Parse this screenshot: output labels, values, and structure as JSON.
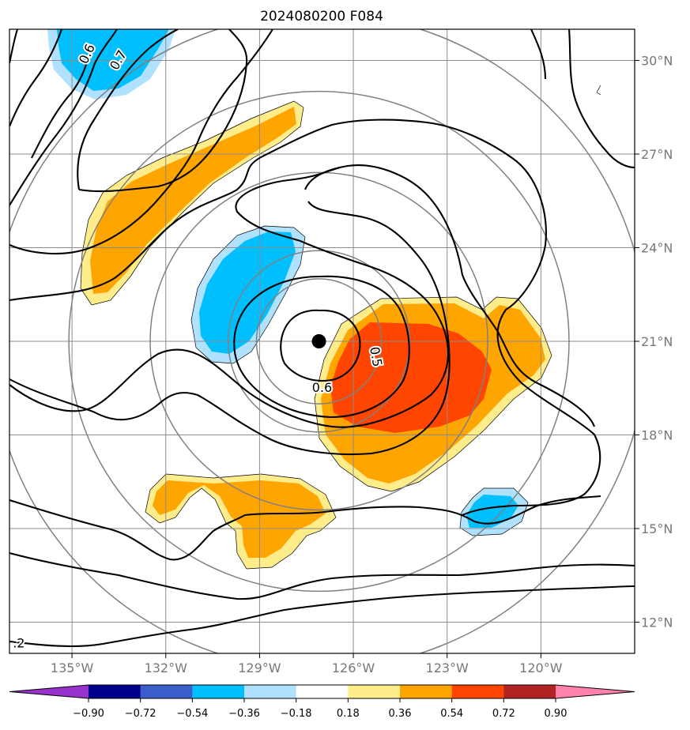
{
  "title": "2024080200 F084",
  "chart_data": {
    "type": "contour-map",
    "title": "2024080200 F084",
    "xlim": [
      -137,
      -117
    ],
    "ylim": [
      11,
      31
    ],
    "x_ticks": [
      {
        "lon": -135,
        "label": "135°W"
      },
      {
        "lon": -132,
        "label": "132°W"
      },
      {
        "lon": -129,
        "label": "129°W"
      },
      {
        "lon": -126,
        "label": "126°W"
      },
      {
        "lon": -123,
        "label": "123°W"
      },
      {
        "lon": -120,
        "label": "120°W"
      }
    ],
    "y_ticks": [
      {
        "lat": 30,
        "label": "30°N"
      },
      {
        "lat": 27,
        "label": "27°N"
      },
      {
        "lat": 24,
        "label": "24°N"
      },
      {
        "lat": 21,
        "label": "21°N"
      },
      {
        "lat": 18,
        "label": "18°N"
      },
      {
        "lat": 15,
        "label": "15°N"
      },
      {
        "lat": 12,
        "label": "12°N"
      }
    ],
    "grid": true,
    "center": {
      "lon": -127.1,
      "lat": 21.0
    },
    "range_rings_deg": [
      2.0,
      2.9,
      5.4,
      8.0,
      10.5
    ],
    "colorbar": {
      "ticks": [
        "−0.90",
        "−0.72",
        "−0.54",
        "−0.36",
        "−0.18",
        "0.18",
        "0.36",
        "0.54",
        "0.72",
        "0.90"
      ],
      "colors": [
        "#9932cc",
        "#00008b",
        "#3a5fcd",
        "#00bfff",
        "#b0e2ff",
        "#ffffff",
        "#ffec8b",
        "#ffa500",
        "#ff4500",
        "#b22222",
        "#ff82ab"
      ]
    },
    "contour_labels": [
      {
        "text": "0.6",
        "lon": -134.5,
        "lat": 30.2,
        "rot": -65
      },
      {
        "text": "0.7",
        "lon": -133.5,
        "lat": 30.0,
        "rot": -60
      },
      {
        "text": "0.5",
        "lon": -125.3,
        "lat": 20.5,
        "rot": 80
      },
      {
        "text": "0.6",
        "lon": -127.0,
        "lat": 19.5,
        "rot": 0
      },
      {
        "text": ".2",
        "lon": -136.7,
        "lat": 11.3,
        "rot": 0
      }
    ]
  }
}
